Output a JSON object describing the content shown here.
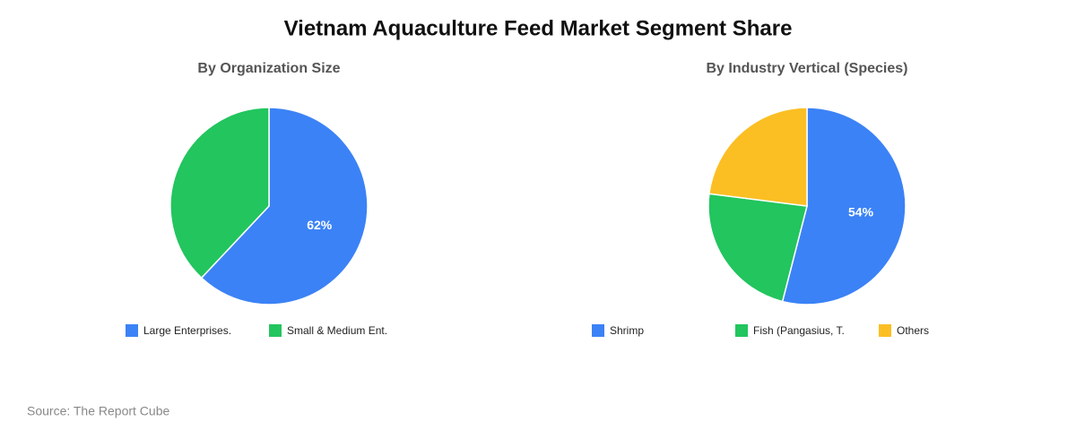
{
  "title": "Vietnam Aquaculture Feed Market Segment Share",
  "source": "Source: The Report Cube",
  "chart_data": [
    {
      "type": "pie",
      "title": "By Organization Size",
      "categories": [
        "Large Enterprises.",
        "Small & Medium Ent."
      ],
      "values": [
        62,
        38
      ],
      "value_labels": [
        "62%",
        null
      ],
      "colors": [
        "#3b82f6",
        "#22c55e"
      ]
    },
    {
      "type": "pie",
      "title": "By Industry Vertical (Species)",
      "categories": [
        "Shrimp",
        "Fish (Pangasius, T.",
        "Others"
      ],
      "values": [
        54,
        23,
        23
      ],
      "value_labels": [
        "54%",
        null,
        null
      ],
      "colors": [
        "#3b82f6",
        "#22c55e",
        "#fbbf24"
      ]
    }
  ]
}
